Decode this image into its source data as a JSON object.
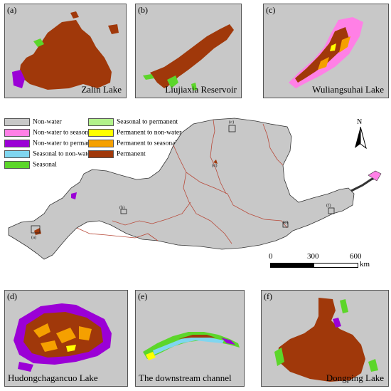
{
  "panels": [
    {
      "id": "a",
      "label": "(a)",
      "title": "Zalin Lake"
    },
    {
      "id": "b",
      "label": "(b)",
      "title": "Liujiaxia Reservoir"
    },
    {
      "id": "c",
      "label": "(c)",
      "title": "Wuliangsuhai Lake"
    },
    {
      "id": "d",
      "label": "(d)",
      "title": "Hudongchagancuo Lake"
    },
    {
      "id": "e",
      "label": "(e)",
      "title": "The downstream channel"
    },
    {
      "id": "f",
      "label": "(f)",
      "title": "Dongping Lake"
    }
  ],
  "legend": [
    {
      "label": "Non-water",
      "color": "#c8c8c8"
    },
    {
      "label": "Non-water to seasonal",
      "color": "#ff80e6"
    },
    {
      "label": "Non-water to permanent",
      "color": "#9b00d6"
    },
    {
      "label": "Seasonal to non-water",
      "color": "#7fd6f0"
    },
    {
      "label": "Seasonal",
      "color": "#5cd62a"
    },
    {
      "label": "Seasonal to permanent",
      "color": "#b2f28a"
    },
    {
      "label": "Permanent to non-water",
      "color": "#ffff00"
    },
    {
      "label": "Permanent to seasonal",
      "color": "#f5a000"
    },
    {
      "label": "Permanent",
      "color": "#a0380a"
    }
  ],
  "map_markers": [
    "(a)",
    "(b)",
    "(c)",
    "(d)",
    "(e)",
    "(f)"
  ],
  "north_label": "N",
  "scale": {
    "ticks": [
      "0",
      "300",
      "600"
    ],
    "unit": "km"
  },
  "colors": {
    "basin": "#c8c8c8",
    "border": "#333333",
    "river": "#b84a3a"
  }
}
